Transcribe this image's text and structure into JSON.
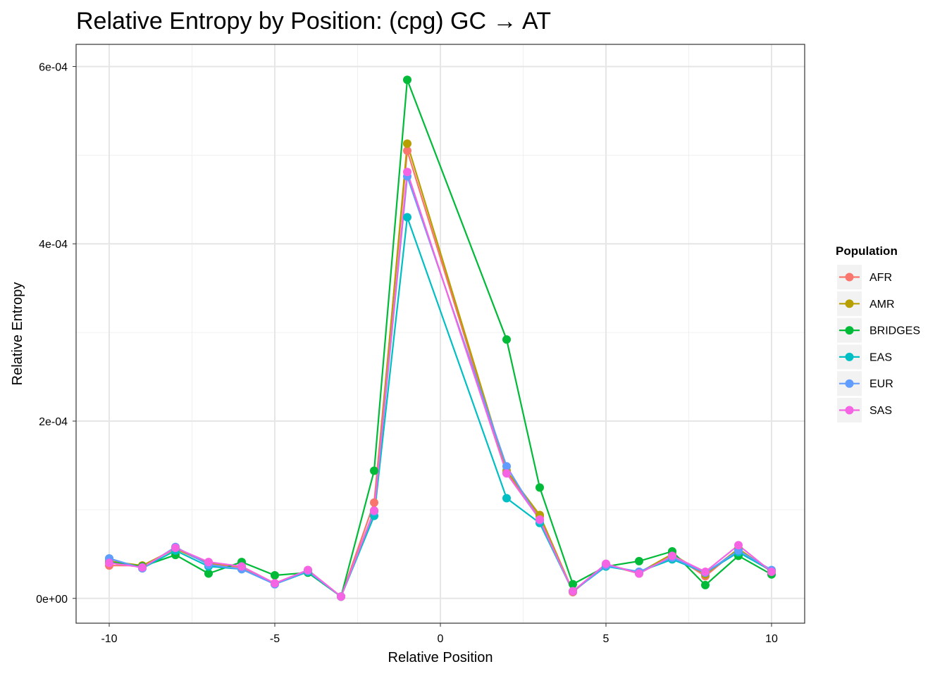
{
  "chart_data": {
    "type": "line",
    "title": "Relative Entropy by Position: (cpg) GC → AT",
    "xlabel": "Relative Position",
    "ylabel": "Relative Entropy",
    "xlim": [
      -11,
      11
    ],
    "ylim": [
      -2.8e-05,
      0.000625
    ],
    "x_ticks": [
      -10,
      -5,
      0,
      5,
      10
    ],
    "x_tick_labels": [
      "-10",
      "-5",
      "0",
      "5",
      "10"
    ],
    "y_ticks": [
      0,
      0.0002,
      0.0004,
      0.0006
    ],
    "y_tick_labels": [
      "0e+00",
      "2e-04",
      "4e-04",
      "6e-04"
    ],
    "grid": true,
    "legend_position": "right",
    "legend_title": "Population",
    "x": [
      -10,
      -9,
      -8,
      -7,
      -6,
      -5,
      -4,
      -3,
      -2,
      -1,
      2,
      3,
      4,
      5,
      6,
      7,
      8,
      9,
      10
    ],
    "series": [
      {
        "name": "AFR",
        "color": "#F8766D",
        "values": [
          3.7e-05,
          3.7e-05,
          5.6e-05,
          3.9e-05,
          3.5e-05,
          1.7e-05,
          3.2e-05,
          2e-06,
          0.000108,
          0.000505,
          0.000142,
          9.2e-05,
          7e-06,
          3.8e-05,
          2.8e-05,
          4.9e-05,
          2.5e-05,
          5.6e-05,
          3e-05
        ]
      },
      {
        "name": "AMR",
        "color": "#B79F00",
        "values": [
          4.2e-05,
          3.7e-05,
          5.6e-05,
          4e-05,
          3.6e-05,
          1.7e-05,
          3e-05,
          2e-06,
          9.9e-05,
          0.000513,
          0.000144,
          9.4e-05,
          8e-06,
          3.8e-05,
          2.9e-05,
          5e-05,
          2.7e-05,
          5.6e-05,
          3e-05
        ]
      },
      {
        "name": "BRIDGES",
        "color": "#00BA38",
        "values": [
          4.1e-05,
          3.6e-05,
          4.9e-05,
          2.8e-05,
          4.1e-05,
          2.6e-05,
          2.9e-05,
          2e-06,
          0.000144,
          0.000585,
          0.000292,
          0.000125,
          1.6e-05,
          3.6e-05,
          4.2e-05,
          5.3e-05,
          1.5e-05,
          4.8e-05,
          2.7e-05
        ]
      },
      {
        "name": "EAS",
        "color": "#00BFC4",
        "values": [
          4.5e-05,
          3.4e-05,
          5.4e-05,
          3.6e-05,
          3.3e-05,
          1.6e-05,
          3e-05,
          2e-06,
          9.3e-05,
          0.00043,
          0.000113,
          8.5e-05,
          8e-06,
          3.6e-05,
          3e-05,
          4.4e-05,
          2.9e-05,
          5.2e-05,
          3.1e-05
        ]
      },
      {
        "name": "EUR",
        "color": "#619CFF",
        "values": [
          4.5e-05,
          3.4e-05,
          5.8e-05,
          3.8e-05,
          3.3e-05,
          1.6e-05,
          3.1e-05,
          2e-06,
          9.8e-05,
          0.000476,
          0.000149,
          8.8e-05,
          8e-06,
          3.7e-05,
          3e-05,
          4.6e-05,
          2.9e-05,
          5.4e-05,
          3.2e-05
        ]
      },
      {
        "name": "SAS",
        "color": "#F564E3",
        "values": [
          4e-05,
          3.5e-05,
          5.7e-05,
          4.1e-05,
          3.6e-05,
          1.7e-05,
          3.2e-05,
          2e-06,
          9.9e-05,
          0.000481,
          0.000141,
          8.9e-05,
          8e-06,
          3.9e-05,
          2.8e-05,
          4.8e-05,
          3e-05,
          6e-05,
          3e-05
        ]
      }
    ]
  }
}
